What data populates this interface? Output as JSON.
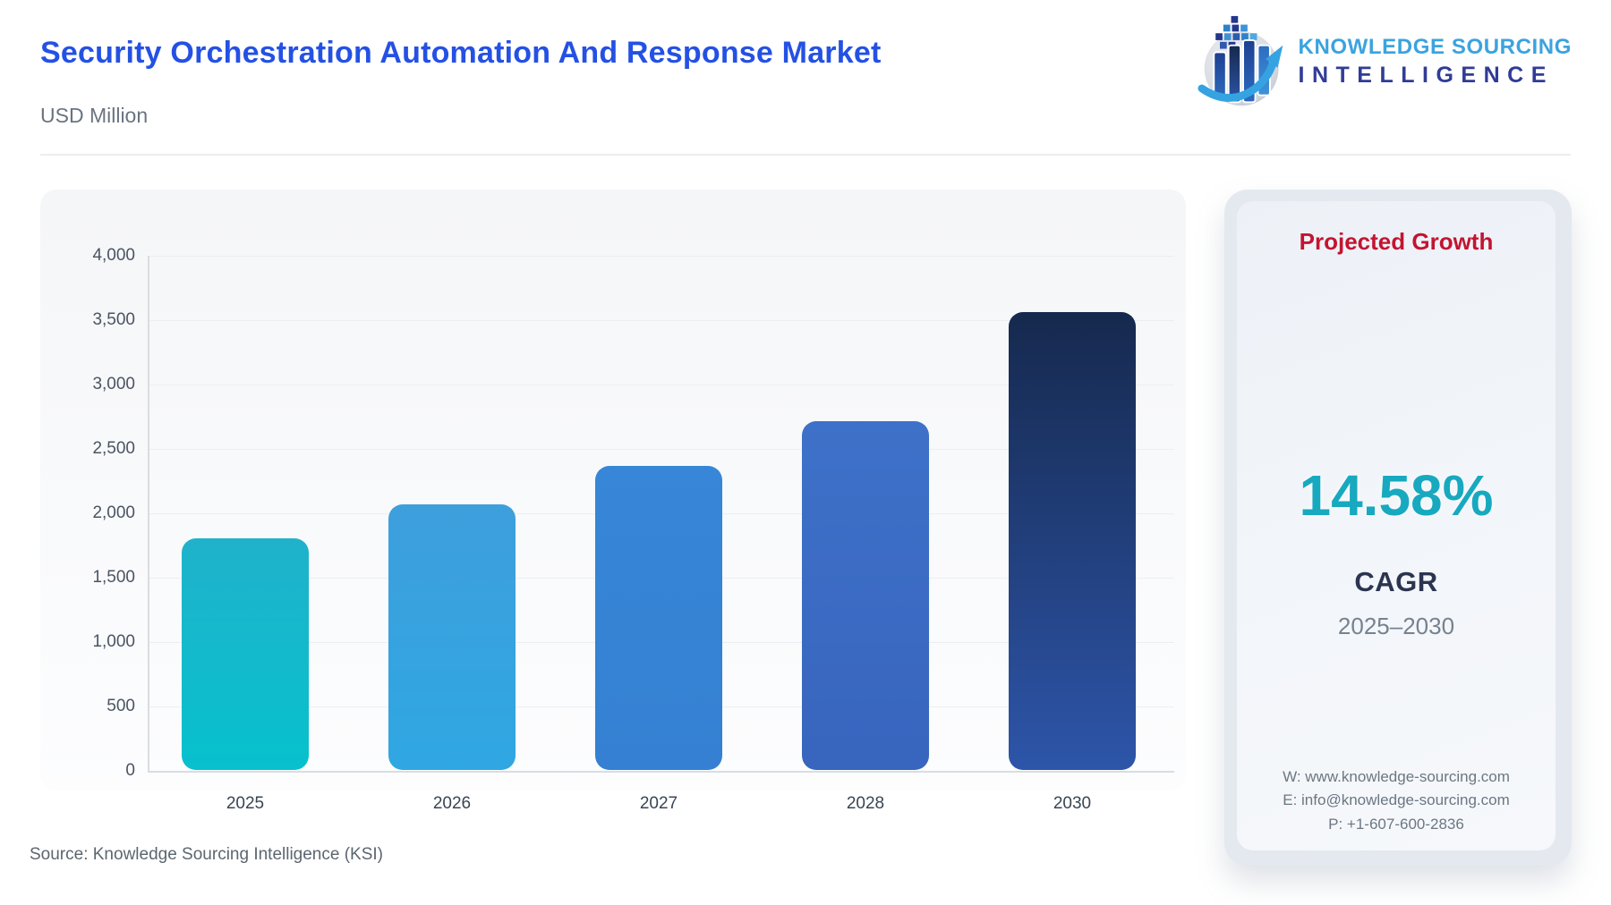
{
  "header": {
    "title": "Security Orchestration Automation And Response Market",
    "subtitle": "USD Million"
  },
  "logo": {
    "line1": "KNOWLEDGE SOURCING",
    "line2": "INTELLIGENCE",
    "icon": "bar-chart-globe-arrow-icon",
    "colors": {
      "line1": "#3BA3DF",
      "line2": "#303C96"
    }
  },
  "chart_data": {
    "type": "bar",
    "title": "Security Orchestration Automation And Response Market",
    "unit": "USD Million",
    "categories": [
      "2025",
      "2026",
      "2027",
      "2028",
      "2030"
    ],
    "values": [
      1800,
      2062,
      2363,
      2708,
      3555
    ],
    "ylim": [
      0,
      4000
    ],
    "y_tick_labels": [
      "4,000",
      "3,500",
      "3,000",
      "2,500",
      "2,000",
      "1,500",
      "1,000",
      "500",
      "0"
    ],
    "grid": true,
    "legend": false,
    "bar_colors": [
      {
        "top": "#1FB2CB",
        "bottom": "#07C1CD"
      },
      {
        "top": "#3E9FDD",
        "bottom": "#2FA7E2"
      },
      {
        "top": "#3786D7",
        "bottom": "#3580D2"
      },
      {
        "top": "#3E71C9",
        "bottom": "#3865BE"
      },
      {
        "top": "#16294E",
        "bottom": "#2D55A9"
      }
    ]
  },
  "growth_panel": {
    "title": "Projected Growth",
    "value": "14.58%",
    "metric": "CAGR",
    "period": "2025–2030",
    "contact": {
      "website": "W: www.knowledge-sourcing.com",
      "email": "E: info@knowledge-sourcing.com",
      "phone": "P: +1-607-600-2836"
    },
    "colors": {
      "title": "#C31431",
      "value": "#17A9BF"
    }
  },
  "footer": {
    "source": "Source: Knowledge Sourcing Intelligence (KSI)"
  }
}
